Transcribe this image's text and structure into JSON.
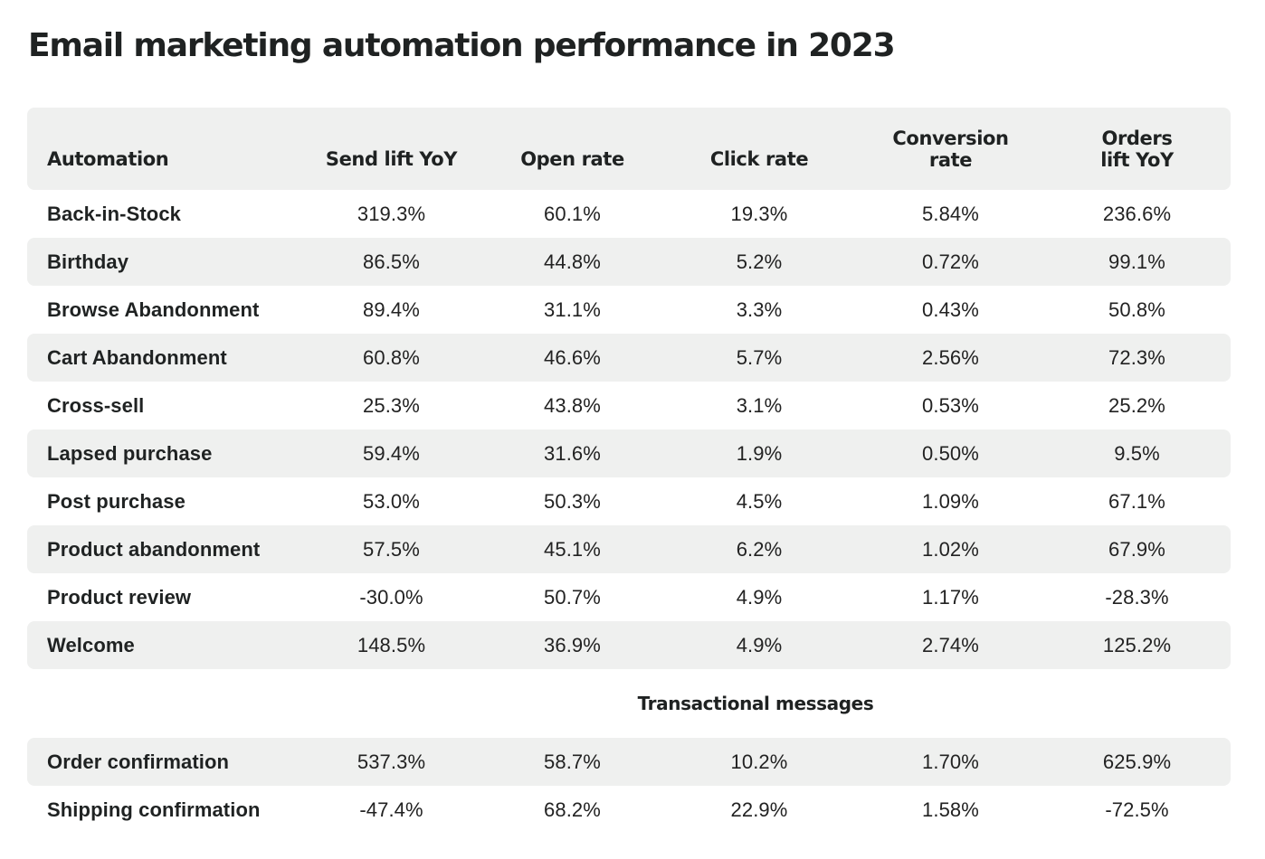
{
  "title": "Email marketing automation performance in 2023",
  "colors": {
    "row_shade": "#eff0ef",
    "text": "#1f2222",
    "background": "#ffffff"
  },
  "chart_data": {
    "type": "table",
    "title": "Email marketing automation performance in 2023",
    "columns": [
      "Automation",
      "Send lift YoY",
      "Open rate",
      "Click rate",
      "Conversion\nrate",
      "Orders\nlift YoY"
    ],
    "rows": [
      [
        "Back-in-Stock",
        "319.3%",
        "60.1%",
        "19.3%",
        "5.84%",
        "236.6%"
      ],
      [
        "Birthday",
        "86.5%",
        "44.8%",
        "5.2%",
        "0.72%",
        "99.1%"
      ],
      [
        "Browse Abandonment",
        "89.4%",
        "31.1%",
        "3.3%",
        "0.43%",
        "50.8%"
      ],
      [
        "Cart Abandonment",
        "60.8%",
        "46.6%",
        "5.7%",
        "2.56%",
        "72.3%"
      ],
      [
        "Cross-sell",
        "25.3%",
        "43.8%",
        "3.1%",
        "0.53%",
        "25.2%"
      ],
      [
        "Lapsed purchase",
        "59.4%",
        "31.6%",
        "1.9%",
        "0.50%",
        "9.5%"
      ],
      [
        "Post purchase",
        "53.0%",
        "50.3%",
        "4.5%",
        "1.09%",
        "67.1%"
      ],
      [
        "Product abandonment",
        "57.5%",
        "45.1%",
        "6.2%",
        "1.02%",
        "67.9%"
      ],
      [
        "Product review",
        "-30.0%",
        "50.7%",
        "4.9%",
        "1.17%",
        "-28.3%"
      ],
      [
        "Welcome",
        "148.5%",
        "36.9%",
        "4.9%",
        "2.74%",
        "125.2%"
      ]
    ],
    "section_label": "Transactional messages",
    "transactional_rows": [
      [
        "Order confirmation",
        "537.3%",
        "58.7%",
        "10.2%",
        "1.70%",
        "625.9%"
      ],
      [
        "Shipping confirmation",
        "-47.4%",
        "68.2%",
        "22.9%",
        "1.58%",
        "-72.5%"
      ]
    ]
  }
}
